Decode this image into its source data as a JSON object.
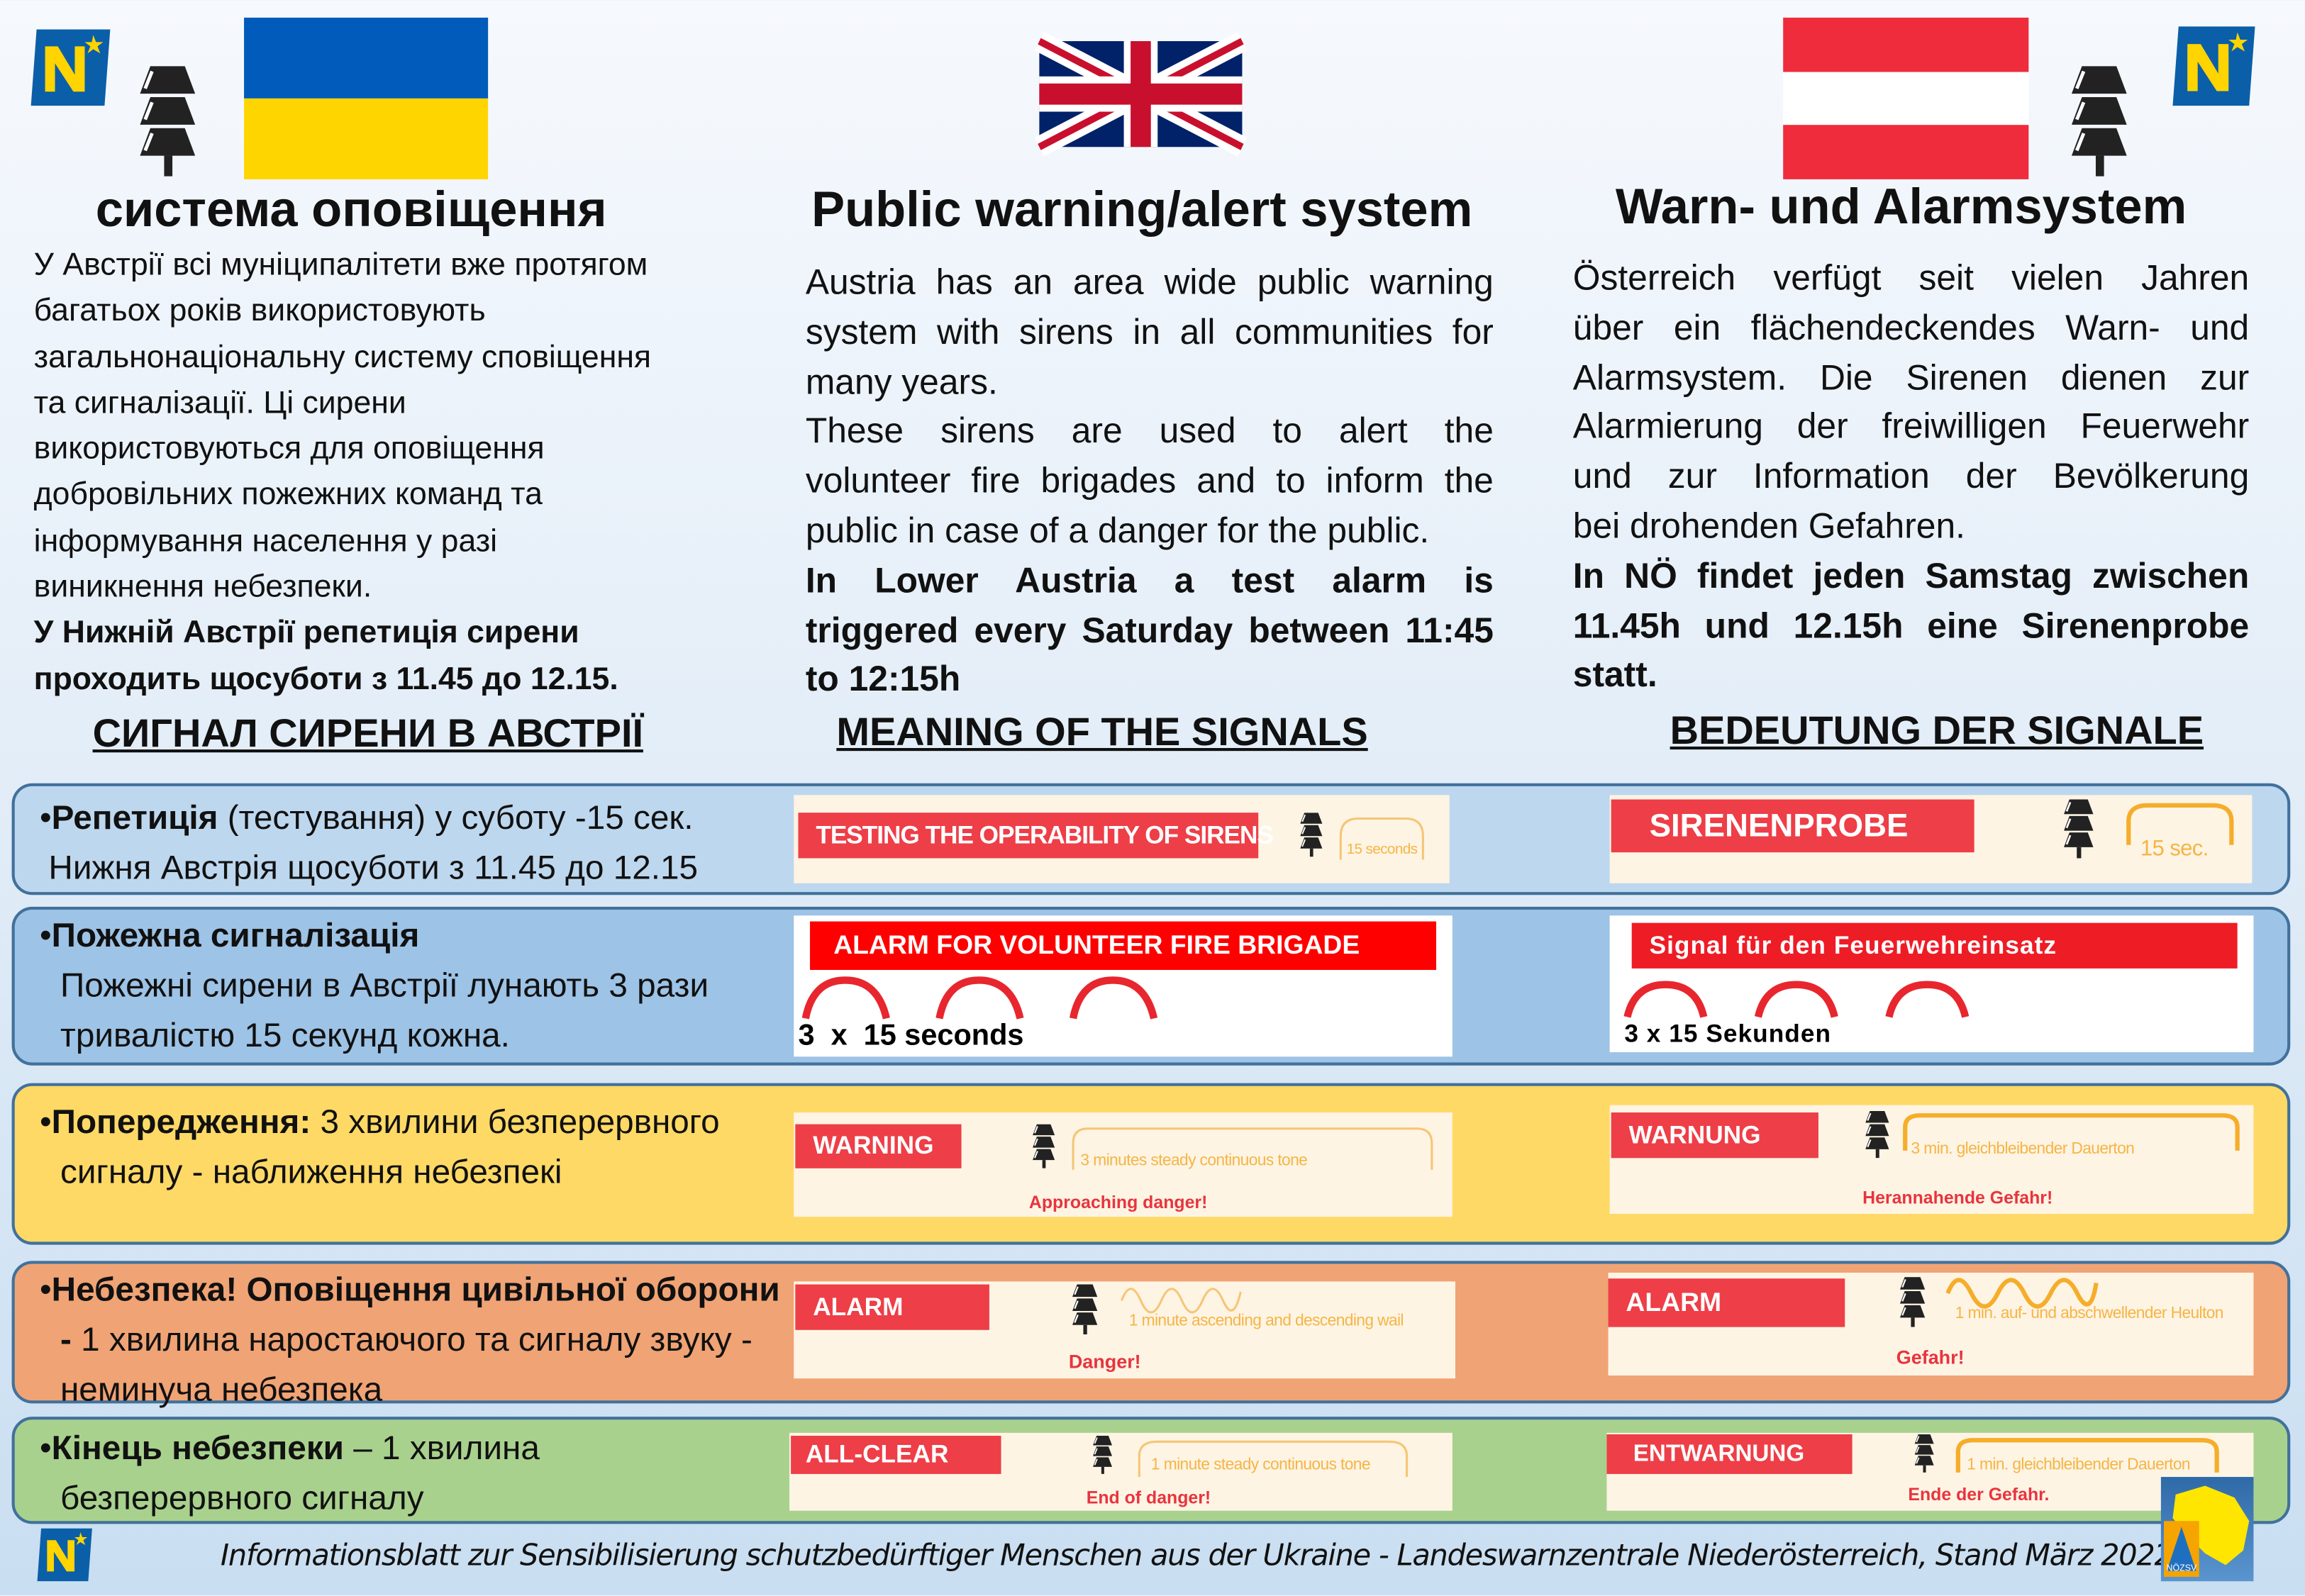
{
  "header": {
    "ua_title": "система оповіщення",
    "en_title": "Public warning/alert system",
    "de_title": "Warn- und Alarmsystem",
    "logo_letter": "N"
  },
  "flags": {
    "ukraine": [
      "#005bbb",
      "#ffd500"
    ],
    "uk": [
      "#012169",
      "#ffffff",
      "#c8102e"
    ],
    "austria": [
      "#ef2c3c",
      "#ffffff",
      "#ef2c3c"
    ]
  },
  "ua_body": {
    "lines": [
      "У Австрії всі муніципалітети вже протягом",
      "багатьох років використовують",
      "загальнонаціональну систему сповіщення",
      "та сигналізації. Ці сирени",
      "використовуються для оповіщення",
      "добровільних пожежних команд та",
      "інформування населення у разі",
      "виникнення небезпеки."
    ],
    "bold_lines": [
      "У Нижній Австрії репетиція сирени",
      "проходить щосуботи з 11.45 до 12.15."
    ]
  },
  "en_body": {
    "p1": [
      "Austria has an area wide public warning",
      "system with sirens in all communities for",
      "many years."
    ],
    "p2": [
      "These sirens are used to alert the",
      "volunteer fire brigades and to inform the",
      "public in case of a danger for the public."
    ],
    "p3": [
      "In Lower Austria a test alarm is",
      "triggered every Saturday between 11:45",
      "to 12:15h"
    ]
  },
  "de_body": {
    "p1": [
      "Österreich verfügt seit vielen Jahren",
      "über ein flächendeckendes Warn- und",
      "Alarmsystem. Die Sirenen dienen zur",
      "Alarmierung der freiwilligen Feuerwehr",
      "und zur Information der Bevölkerung",
      "bei drohenden Gefahren."
    ],
    "p2": [
      "In NÖ findet jeden Samstag zwischen",
      "11.45h und 12.15h eine Sirenenprobe",
      "statt."
    ]
  },
  "headings": {
    "ua": "СИГНАЛ СИРЕНИ В АВСТРІЇ",
    "en": "MEANING OF THE SIGNALS",
    "de": "BEDEUTUNG DER SIGNALE"
  },
  "rows": [
    {
      "bullet": "•",
      "bold": "Репетиція",
      "text": " (тестування) у суботу -15 сек.",
      "text2": "Нижня Австрія щосуботи з 11.45 до 12.15",
      "color": "#bdd7ee",
      "en": {
        "label": "TESTING THE OPERABILITY OF SIRENS",
        "caption": "15 seconds"
      },
      "de": {
        "label": "SIRENENPROBE",
        "caption": "15 sec."
      }
    },
    {
      "bullet": "•",
      "bold": "Пожежна сигналізація",
      "text": "Пожежні сирени в Австрії лунають 3 рази тривалістю 15 секунд кожна.",
      "color": "#9dc3e6",
      "en": {
        "label": "ALARM FOR VOLUNTEER FIRE BRIGADE",
        "caption": "3  x  15 seconds"
      },
      "de": {
        "label": "Signal für den Feuerwehreinsatz",
        "caption": "3 x 15 Sekunden"
      }
    },
    {
      "bullet": "•",
      "bold": "Попередження:",
      "text": " 3 хвилини безперервного сигналу - наближення небезпекі",
      "color": "#ffd966",
      "en": {
        "label": "WARNING",
        "caption": "3 minutes steady continuous tone",
        "note": "Approaching danger!"
      },
      "de": {
        "label": "WARNUNG",
        "caption": "3 min. gleichbleibender Dauerton",
        "note": "Herannahende Gefahr!"
      }
    },
    {
      "bullet": "•",
      "bold": "Небезпека! Оповіщення цивільної оборони - ",
      "text": " 1 хвилина наростаючого та сигналу звуку - неминуча небезпека",
      "color": "#f0a374",
      "en": {
        "label": "ALARM",
        "caption": "1 minute ascending and descending wail",
        "note": "Danger!"
      },
      "de": {
        "label": "ALARM",
        "caption": "1 min. auf- und abschwellender Heulton",
        "note": "Gefahr!"
      }
    },
    {
      "bullet": "•",
      "bold": "Кінець небезпеки",
      "text": " – 1 хвилина безперервного сигналу",
      "color": "#a9d18e",
      "en": {
        "label": "ALL-CLEAR",
        "caption": "1 minute steady continuous tone",
        "note": "End of danger!"
      },
      "de": {
        "label": "ENTWARNUNG",
        "caption": "1 min. gleichbleibender Dauerton",
        "note": "Ende der Gefahr."
      }
    }
  ],
  "footer": {
    "text": "Informationsblatt zur Sensibilisierung schutzbedürftiger Menschen aus der Ukraine - Landeswarnzentrale Niederösterreich, Stand März 2022",
    "badge": "NÖZSV"
  }
}
